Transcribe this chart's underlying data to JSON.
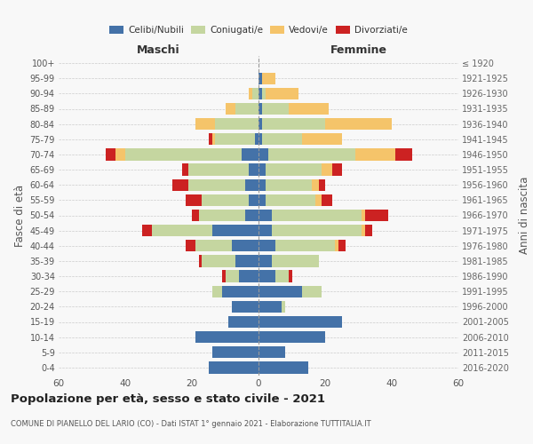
{
  "age_groups": [
    "0-4",
    "5-9",
    "10-14",
    "15-19",
    "20-24",
    "25-29",
    "30-34",
    "35-39",
    "40-44",
    "45-49",
    "50-54",
    "55-59",
    "60-64",
    "65-69",
    "70-74",
    "75-79",
    "80-84",
    "85-89",
    "90-94",
    "95-99",
    "100+"
  ],
  "birth_years": [
    "2016-2020",
    "2011-2015",
    "2006-2010",
    "2001-2005",
    "1996-2000",
    "1991-1995",
    "1986-1990",
    "1981-1985",
    "1976-1980",
    "1971-1975",
    "1966-1970",
    "1961-1965",
    "1956-1960",
    "1951-1955",
    "1946-1950",
    "1941-1945",
    "1936-1940",
    "1931-1935",
    "1926-1930",
    "1921-1925",
    "≤ 1920"
  ],
  "males": {
    "celibi": [
      15,
      14,
      19,
      9,
      8,
      11,
      6,
      7,
      8,
      14,
      4,
      3,
      4,
      3,
      5,
      1,
      0,
      0,
      0,
      0,
      0
    ],
    "coniugati": [
      0,
      0,
      0,
      0,
      0,
      3,
      4,
      10,
      11,
      18,
      14,
      14,
      17,
      18,
      35,
      12,
      13,
      7,
      2,
      0,
      0
    ],
    "vedovi": [
      0,
      0,
      0,
      0,
      0,
      0,
      0,
      0,
      0,
      0,
      0,
      0,
      0,
      0,
      3,
      1,
      6,
      3,
      1,
      0,
      0
    ],
    "divorziati": [
      0,
      0,
      0,
      0,
      0,
      0,
      1,
      1,
      3,
      3,
      2,
      5,
      5,
      2,
      3,
      1,
      0,
      0,
      0,
      0,
      0
    ]
  },
  "females": {
    "nubili": [
      15,
      8,
      20,
      25,
      7,
      13,
      5,
      4,
      5,
      4,
      4,
      2,
      2,
      2,
      3,
      1,
      1,
      1,
      1,
      1,
      0
    ],
    "coniugate": [
      0,
      0,
      0,
      0,
      1,
      6,
      4,
      14,
      18,
      27,
      27,
      15,
      14,
      17,
      26,
      12,
      19,
      8,
      1,
      0,
      0
    ],
    "vedove": [
      0,
      0,
      0,
      0,
      0,
      0,
      0,
      0,
      1,
      1,
      1,
      2,
      2,
      3,
      12,
      12,
      20,
      12,
      10,
      4,
      0
    ],
    "divorziate": [
      0,
      0,
      0,
      0,
      0,
      0,
      1,
      0,
      2,
      2,
      7,
      3,
      2,
      3,
      5,
      0,
      0,
      0,
      0,
      0,
      0
    ]
  },
  "colors": {
    "celibi": "#4472a8",
    "coniugati": "#c5d6a0",
    "vedovi": "#f5c46a",
    "divorziati": "#cc2222"
  },
  "xlim": 60,
  "title": "Popolazione per età, sesso e stato civile - 2021",
  "subtitle": "COMUNE DI PIANELLO DEL LARIO (CO) - Dati ISTAT 1° gennaio 2021 - Elaborazione TUTTITALIA.IT",
  "ylabel_left": "Fasce di età",
  "ylabel_right": "Anni di nascita",
  "xlabel_left": "Maschi",
  "xlabel_right": "Femmine",
  "bg_color": "#f8f8f8",
  "grid_color": "#cccccc"
}
